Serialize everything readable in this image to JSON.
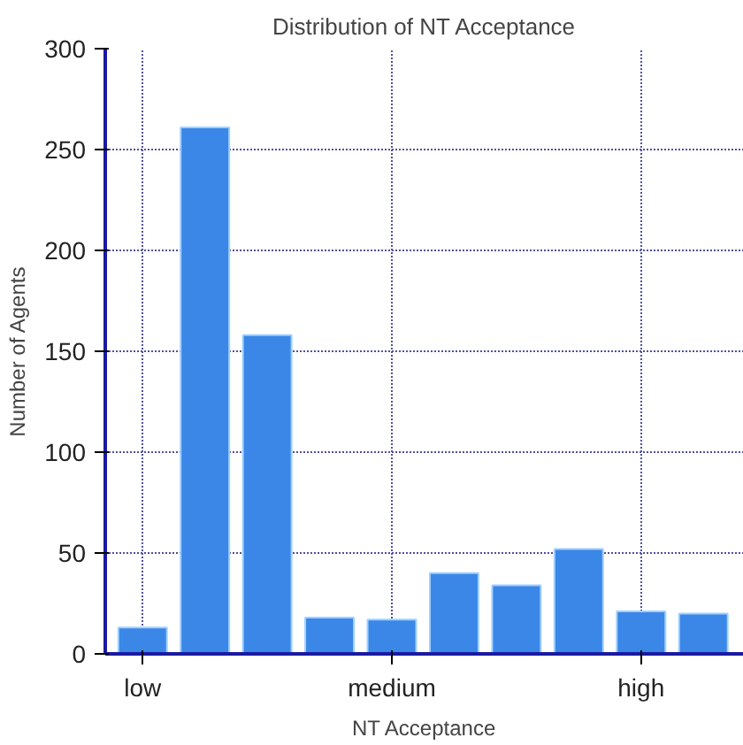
{
  "chart_data": {
    "type": "bar",
    "title": "Distribution of NT Acceptance",
    "xlabel": "NT Acceptance",
    "ylabel": "Number of Agents",
    "categories": [
      "low",
      null,
      null,
      null,
      "medium",
      null,
      null,
      null,
      "high",
      null
    ],
    "values": [
      13,
      261,
      158,
      18,
      17,
      40,
      34,
      52,
      21,
      20
    ],
    "color": "#3b87e8",
    "ylim": [
      0,
      300
    ],
    "yticks": [
      0,
      50,
      100,
      150,
      200,
      250,
      300
    ],
    "grid": true
  }
}
